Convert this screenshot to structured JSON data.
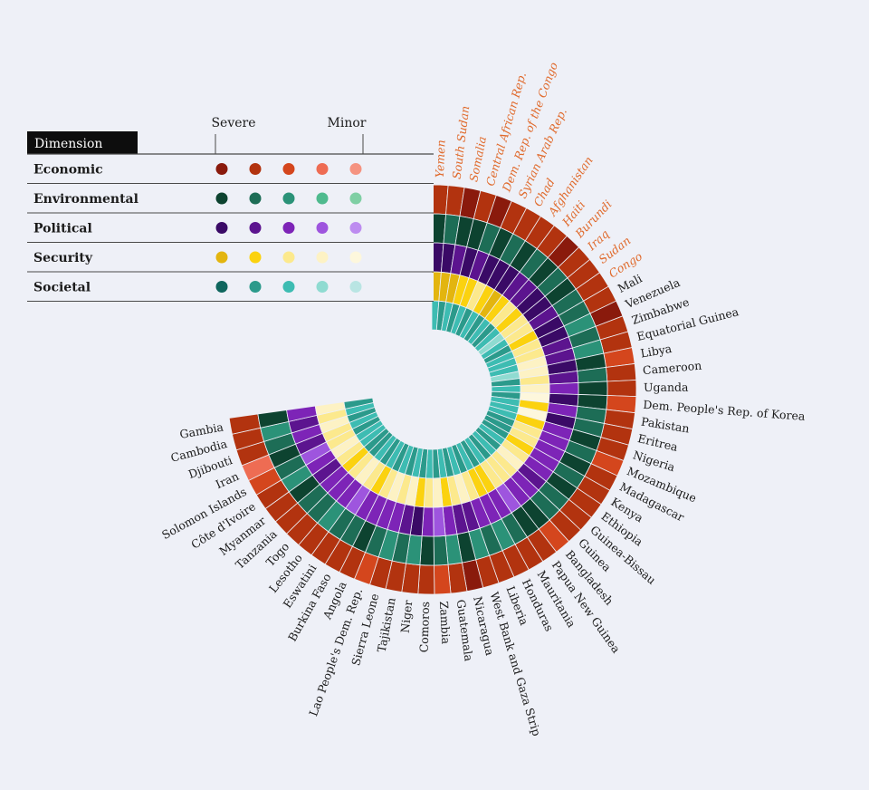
{
  "legend": {
    "header": "Dimension",
    "severe_label": "Severe",
    "minor_label": "Minor",
    "rows": [
      {
        "name": "Economic",
        "palette": [
          "#8a1a0c",
          "#b2330f",
          "#d4461d",
          "#ee6c53",
          "#f59380"
        ]
      },
      {
        "name": "Environmental",
        "palette": [
          "#0d4330",
          "#1d6d56",
          "#2b9278",
          "#4fba8e",
          "#7fcfa4"
        ]
      },
      {
        "name": "Political",
        "palette": [
          "#3a0a66",
          "#5c148f",
          "#7d24b7",
          "#9e55de",
          "#bd8cf0"
        ]
      },
      {
        "name": "Security",
        "palette": [
          "#e3b50f",
          "#fbd20f",
          "#fce98d",
          "#fdf2c4",
          "#fdf7dc"
        ]
      },
      {
        "name": "Societal",
        "palette": [
          "#0f665e",
          "#2b9a8b",
          "#3dbcb2",
          "#8fdbd1",
          "#b9e5e3"
        ]
      }
    ]
  },
  "chart_data": {
    "type": "radial heatmap",
    "title": "",
    "dimensions": [
      "Economic",
      "Environmental",
      "Political",
      "Security",
      "Societal"
    ],
    "level_scale": "0 = Severe ... 4 = Minor",
    "highlight_color": "#e06a2c",
    "default_label_color": "#1b1b1b",
    "countries": [
      {
        "name": "Yemen",
        "highlight": true,
        "levels": [
          1,
          0,
          0,
          0,
          2
        ]
      },
      {
        "name": "South Sudan",
        "highlight": true,
        "levels": [
          1,
          1,
          0,
          0,
          1
        ]
      },
      {
        "name": "Somalia",
        "highlight": true,
        "levels": [
          0,
          0,
          1,
          0,
          2
        ]
      },
      {
        "name": "Central African Rep.",
        "highlight": true,
        "levels": [
          1,
          0,
          0,
          1,
          1
        ]
      },
      {
        "name": "Dem. Rep. of the Congo",
        "highlight": true,
        "levels": [
          0,
          1,
          1,
          1,
          2
        ]
      },
      {
        "name": "Syrian Arab Rep.",
        "highlight": true,
        "levels": [
          1,
          0,
          0,
          2,
          1
        ]
      },
      {
        "name": "Chad",
        "highlight": true,
        "levels": [
          1,
          1,
          0,
          1,
          2
        ]
      },
      {
        "name": "Afghanistan",
        "highlight": true,
        "levels": [
          1,
          0,
          0,
          0,
          1
        ]
      },
      {
        "name": "Haiti",
        "highlight": true,
        "levels": [
          1,
          1,
          1,
          1,
          2
        ]
      },
      {
        "name": "Burundi",
        "highlight": true,
        "levels": [
          0,
          0,
          1,
          2,
          1
        ]
      },
      {
        "name": "Iraq",
        "highlight": true,
        "levels": [
          1,
          1,
          0,
          1,
          2
        ]
      },
      {
        "name": "Sudan",
        "highlight": true,
        "levels": [
          1,
          0,
          0,
          2,
          3
        ]
      },
      {
        "name": "Congo",
        "highlight": true,
        "levels": [
          1,
          1,
          1,
          2,
          2
        ]
      },
      {
        "name": "Mali",
        "highlight": false,
        "levels": [
          1,
          1,
          0,
          1,
          1
        ]
      },
      {
        "name": "Venezuela",
        "highlight": false,
        "levels": [
          0,
          2,
          0,
          2,
          2
        ]
      },
      {
        "name": "Zimbabwe",
        "highlight": false,
        "levels": [
          1,
          1,
          1,
          2,
          2
        ]
      },
      {
        "name": "Equatorial Guinea",
        "highlight": false,
        "levels": [
          1,
          2,
          1,
          3,
          2
        ]
      },
      {
        "name": "Libya",
        "highlight": false,
        "levels": [
          2,
          0,
          0,
          3,
          3
        ]
      },
      {
        "name": "Cameroon",
        "highlight": false,
        "levels": [
          1,
          1,
          1,
          2,
          1
        ]
      },
      {
        "name": "Uganda",
        "highlight": false,
        "levels": [
          1,
          0,
          2,
          3,
          2
        ]
      },
      {
        "name": "Dem. People's Rep. of Korea",
        "highlight": false,
        "levels": [
          2,
          0,
          0,
          4,
          1
        ]
      },
      {
        "name": "Pakistan",
        "highlight": false,
        "levels": [
          1,
          1,
          2,
          1,
          2
        ]
      },
      {
        "name": "Eritrea",
        "highlight": false,
        "levels": [
          1,
          1,
          0,
          4,
          2
        ]
      },
      {
        "name": "Nigeria",
        "highlight": false,
        "levels": [
          1,
          0,
          2,
          1,
          2
        ]
      },
      {
        "name": "Mozambique",
        "highlight": false,
        "levels": [
          2,
          1,
          2,
          2,
          1
        ]
      },
      {
        "name": "Madagascar",
        "highlight": false,
        "levels": [
          1,
          0,
          2,
          2,
          1
        ]
      },
      {
        "name": "Kenya",
        "highlight": false,
        "levels": [
          1,
          1,
          2,
          1,
          1
        ]
      },
      {
        "name": "Ethiopia",
        "highlight": false,
        "levels": [
          1,
          0,
          2,
          2,
          2
        ]
      },
      {
        "name": "Guinea-Bissau",
        "highlight": false,
        "levels": [
          1,
          1,
          1,
          3,
          1
        ]
      },
      {
        "name": "Guinea",
        "highlight": false,
        "levels": [
          1,
          1,
          2,
          2,
          2
        ]
      },
      {
        "name": "Bangladesh",
        "highlight": false,
        "levels": [
          2,
          0,
          2,
          2,
          1
        ]
      },
      {
        "name": "Papua New Guinea",
        "highlight": false,
        "levels": [
          1,
          0,
          3,
          2,
          2
        ]
      },
      {
        "name": "Mauritania",
        "highlight": false,
        "levels": [
          1,
          1,
          2,
          1,
          1
        ]
      },
      {
        "name": "Honduras",
        "highlight": false,
        "levels": [
          1,
          2,
          2,
          1,
          2
        ]
      },
      {
        "name": "Liberia",
        "highlight": false,
        "levels": [
          1,
          1,
          2,
          2,
          1
        ]
      },
      {
        "name": "West Bank and Gaza Strip",
        "highlight": false,
        "levels": [
          1,
          2,
          1,
          3,
          2
        ]
      },
      {
        "name": "Nicaragua",
        "highlight": false,
        "levels": [
          0,
          0,
          1,
          2,
          1
        ]
      },
      {
        "name": "Guatemala",
        "highlight": false,
        "levels": [
          1,
          2,
          2,
          1,
          2
        ]
      },
      {
        "name": "Zambia",
        "highlight": false,
        "levels": [
          2,
          1,
          3,
          3,
          1
        ]
      },
      {
        "name": "Comoros",
        "highlight": false,
        "levels": [
          1,
          0,
          2,
          2,
          2
        ]
      },
      {
        "name": "Niger",
        "highlight": false,
        "levels": [
          1,
          2,
          0,
          1,
          1
        ]
      },
      {
        "name": "Tajikistan",
        "highlight": false,
        "levels": [
          1,
          1,
          1,
          3,
          2
        ]
      },
      {
        "name": "Sierra Leone",
        "highlight": false,
        "levels": [
          1,
          2,
          2,
          2,
          1
        ]
      },
      {
        "name": "Lao People's Dem. Rep.",
        "highlight": false,
        "levels": [
          2,
          1,
          2,
          3,
          2
        ]
      },
      {
        "name": "Angola",
        "highlight": false,
        "levels": [
          1,
          0,
          2,
          2,
          1
        ]
      },
      {
        "name": "Burkina Faso",
        "highlight": false,
        "levels": [
          1,
          1,
          2,
          1,
          2
        ]
      },
      {
        "name": "Eswatini",
        "highlight": false,
        "levels": [
          1,
          1,
          3,
          2,
          1
        ]
      },
      {
        "name": "Lesotho",
        "highlight": false,
        "levels": [
          1,
          2,
          2,
          3,
          2
        ]
      },
      {
        "name": "Togo",
        "highlight": false,
        "levels": [
          1,
          1,
          2,
          2,
          1
        ]
      },
      {
        "name": "Tanzania",
        "highlight": false,
        "levels": [
          1,
          1,
          2,
          1,
          1
        ]
      },
      {
        "name": "Myanmar",
        "highlight": false,
        "levels": [
          1,
          0,
          1,
          2,
          2
        ]
      },
      {
        "name": "Côte d'Ivoire",
        "highlight": false,
        "levels": [
          1,
          2,
          2,
          3,
          2
        ]
      },
      {
        "name": "Solomon Islands",
        "highlight": false,
        "levels": [
          2,
          1,
          3,
          2,
          1
        ]
      },
      {
        "name": "Iran",
        "highlight": false,
        "levels": [
          3,
          0,
          1,
          2,
          2
        ]
      },
      {
        "name": "Djibouti",
        "highlight": false,
        "levels": [
          1,
          1,
          2,
          3,
          1
        ]
      },
      {
        "name": "Cambodia",
        "highlight": false,
        "levels": [
          1,
          2,
          1,
          2,
          2
        ]
      },
      {
        "name": "Gambia",
        "highlight": false,
        "levels": [
          1,
          0,
          2,
          3,
          1
        ]
      }
    ]
  }
}
